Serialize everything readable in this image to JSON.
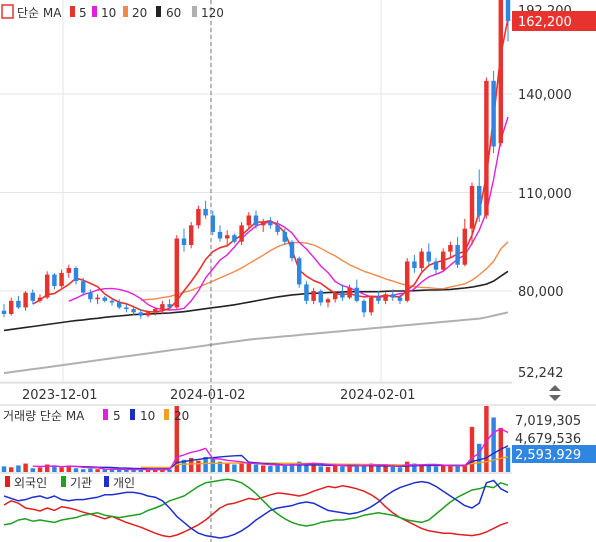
{
  "colors": {
    "up": "#e8322e",
    "down": "#2f86e0",
    "ma5": "#e8322e",
    "ma10": "#e020e0",
    "ma20": "#f08a4b",
    "ma60": "#222222",
    "ma120": "#b0b0b0",
    "vma5": "#e020e0",
    "vma10": "#1b2fbf",
    "vma20": "#f0a020",
    "foreign": "#e02020",
    "institution": "#20a020",
    "individual": "#1f2fd0",
    "price_badge": "#e8322e",
    "volume_badge": "#2f86e0",
    "grid": "#e6e6e6",
    "axis_text": "#333333"
  },
  "price_legend": {
    "title": "단순 MA",
    "items": [
      {
        "label": "5",
        "color": "#e8322e"
      },
      {
        "label": "10",
        "color": "#e020e0"
      },
      {
        "label": "20",
        "color": "#f08a4b"
      },
      {
        "label": "60",
        "color": "#222222"
      },
      {
        "label": "120",
        "color": "#b0b0b0"
      }
    ]
  },
  "volume_legend": {
    "title": "거래량 단순 MA",
    "items": [
      {
        "label": "5",
        "color": "#e020e0"
      },
      {
        "label": "10",
        "color": "#1b2fbf"
      },
      {
        "label": "20",
        "color": "#f0a020"
      }
    ]
  },
  "investor_legend": {
    "items": [
      {
        "label": "외국인",
        "color": "#e02020"
      },
      {
        "label": "기관",
        "color": "#20a020"
      },
      {
        "label": "개인",
        "color": "#1f2fd0"
      }
    ]
  },
  "price_axis": {
    "labels": [
      "140,000",
      "110,000",
      "80,000",
      "52,242"
    ],
    "top_partial": "192,200",
    "current_price": "162,200"
  },
  "volume_axis": {
    "labels": [
      "7,019,305",
      "4,679,536"
    ],
    "current_volume": "2,593,929"
  },
  "x_axis": {
    "labels": [
      "2023-12-01",
      "2024-01-02",
      "2024-02-01"
    ]
  },
  "resize_handle_icon": "up-down-arrows-icon",
  "chart_data": {
    "type": "candlestick",
    "price_ticks": [
      140000,
      110000,
      80000,
      52242
    ],
    "price_last": 162200,
    "volume_ticks": [
      7019305,
      4679536
    ],
    "volume_last": 2593929,
    "date_ticks": [
      "2023-12-01",
      "2024-01-02",
      "2024-02-01"
    ],
    "series_names": [
      "MA 5",
      "MA 10",
      "MA 20",
      "MA 60",
      "MA 120"
    ],
    "ohlc": [
      [
        74000,
        76000,
        72000,
        73000
      ],
      [
        73000,
        78000,
        72500,
        77000
      ],
      [
        77000,
        78500,
        74500,
        75000
      ],
      [
        75000,
        80000,
        74000,
        79500
      ],
      [
        79500,
        80500,
        76000,
        77000
      ],
      [
        77000,
        79000,
        76500,
        78000
      ],
      [
        78000,
        86000,
        77500,
        85000
      ],
      [
        85000,
        85500,
        80500,
        81500
      ],
      [
        81500,
        86500,
        81000,
        85500
      ],
      [
        85500,
        88000,
        84000,
        87000
      ],
      [
        87000,
        87500,
        82000,
        83000
      ],
      [
        83000,
        84000,
        78500,
        79500
      ],
      [
        79500,
        80500,
        76500,
        77500
      ],
      [
        77500,
        79000,
        76000,
        78000
      ],
      [
        78000,
        78500,
        76500,
        77000
      ],
      [
        77000,
        78000,
        75500,
        76500
      ],
      [
        76500,
        77500,
        74500,
        75000
      ],
      [
        75000,
        76000,
        73500,
        74500
      ],
      [
        74500,
        75500,
        72500,
        73500
      ],
      [
        73500,
        74500,
        71500,
        72500
      ],
      [
        72500,
        74000,
        72000,
        73500
      ],
      [
        73500,
        75000,
        72500,
        74500
      ],
      [
        74500,
        77000,
        73000,
        76000
      ],
      [
        76000,
        77500,
        74000,
        75000
      ],
      [
        75000,
        97000,
        74500,
        96000
      ],
      [
        96000,
        99000,
        92000,
        94000
      ],
      [
        94000,
        101000,
        93000,
        100000
      ],
      [
        100000,
        106000,
        99000,
        105000
      ],
      [
        105000,
        107500,
        102000,
        103000
      ],
      [
        103000,
        104500,
        97000,
        98000
      ],
      [
        98000,
        100000,
        95000,
        96000
      ],
      [
        96000,
        98500,
        94000,
        97000
      ],
      [
        97000,
        97500,
        94500,
        95000
      ],
      [
        95000,
        101000,
        94000,
        100000
      ],
      [
        100000,
        104000,
        99000,
        103000
      ],
      [
        103000,
        104500,
        99000,
        100000
      ],
      [
        100000,
        102000,
        98000,
        101000
      ],
      [
        101000,
        102500,
        99000,
        100000
      ],
      [
        100000,
        101500,
        97000,
        98000
      ],
      [
        98000,
        99000,
        94000,
        95000
      ],
      [
        95000,
        95500,
        89000,
        90000
      ],
      [
        90000,
        90500,
        81000,
        82000
      ],
      [
        82000,
        83000,
        76000,
        77000
      ],
      [
        77000,
        81000,
        76000,
        80000
      ],
      [
        80000,
        80500,
        75500,
        76500
      ],
      [
        76500,
        78000,
        75000,
        77500
      ],
      [
        77500,
        80000,
        76500,
        79500
      ],
      [
        79500,
        82000,
        77000,
        78000
      ],
      [
        78000,
        82000,
        77500,
        81000
      ],
      [
        81000,
        83500,
        76500,
        77000
      ],
      [
        77000,
        77500,
        72000,
        73500
      ],
      [
        73500,
        78500,
        72500,
        78000
      ],
      [
        78000,
        80000,
        76000,
        77000
      ],
      [
        77000,
        79500,
        76000,
        79000
      ],
      [
        79000,
        80500,
        77000,
        78000
      ],
      [
        78000,
        79000,
        76000,
        77000
      ],
      [
        77000,
        90000,
        76500,
        89000
      ],
      [
        89000,
        91000,
        85500,
        87000
      ],
      [
        87000,
        93000,
        86000,
        92000
      ],
      [
        92000,
        94500,
        88000,
        89000
      ],
      [
        89000,
        90000,
        85000,
        86500
      ],
      [
        86500,
        93000,
        86000,
        92000
      ],
      [
        92000,
        95000,
        90000,
        94000
      ],
      [
        94000,
        96500,
        87000,
        88000
      ],
      [
        88000,
        102000,
        87500,
        99000
      ],
      [
        99000,
        113000,
        94000,
        112000
      ],
      [
        112000,
        117000,
        101000,
        103000
      ],
      [
        103000,
        145000,
        102000,
        144000
      ],
      [
        144000,
        147000,
        122000,
        124000
      ],
      [
        125000,
        180000,
        124000,
        176000
      ],
      [
        176000,
        193000,
        156000,
        162200
      ]
    ],
    "ma5": [
      null,
      null,
      null,
      null,
      76000,
      77300,
      78900,
      79200,
      80600,
      82000,
      83900,
      83300,
      82300,
      81300,
      79100,
      77700,
      76600,
      76100,
      75200,
      74200,
      73700,
      73600,
      74000,
      74700,
      77000,
      80100,
      82900,
      86000,
      89600,
      92000,
      93200,
      93800,
      95600,
      97000,
      99000,
      101000,
      101000,
      101400,
      100000,
      97800,
      92500,
      86400,
      84500,
      83200,
      82300,
      80700,
      79300,
      78800,
      79200,
      78600,
      78200,
      78400,
      78300,
      78700,
      78400,
      78200,
      80200,
      82000,
      85600,
      87800,
      88700,
      89300,
      90100,
      91300,
      92100,
      97000,
      104000,
      115000,
      133000,
      152000,
      163000
    ],
    "ma10": [
      null,
      null,
      null,
      null,
      null,
      null,
      null,
      null,
      null,
      76900,
      77800,
      78900,
      79500,
      80300,
      80700,
      80800,
      80500,
      79900,
      79000,
      77700,
      75900,
      74800,
      74400,
      74200,
      74300,
      74700,
      77000,
      80000,
      84000,
      86700,
      89400,
      91000,
      93400,
      96000,
      98000,
      99800,
      100600,
      101000,
      100600,
      99400,
      97700,
      94800,
      92800,
      90300,
      87600,
      85600,
      82900,
      81600,
      81000,
      80000,
      79000,
      78200,
      78100,
      78400,
      78700,
      79200,
      79400,
      80700,
      82700,
      84300,
      85100,
      86000,
      87900,
      89700,
      91000,
      94500,
      98500,
      104000,
      114000,
      126000,
      133000
    ],
    "ma20": [
      null,
      null,
      null,
      null,
      null,
      null,
      null,
      null,
      null,
      null,
      null,
      null,
      null,
      null,
      null,
      null,
      null,
      null,
      null,
      77200,
      77400,
      77600,
      78000,
      78300,
      79000,
      79600,
      80200,
      81100,
      82100,
      83000,
      84000,
      84900,
      85900,
      87000,
      88300,
      89600,
      90900,
      92300,
      93500,
      94300,
      94700,
      94800,
      94600,
      94000,
      93000,
      91800,
      90700,
      89300,
      88000,
      87000,
      86000,
      85300,
      84500,
      83700,
      83000,
      82300,
      81700,
      81300,
      81100,
      81000,
      80800,
      80700,
      81200,
      81700,
      82200,
      83300,
      84900,
      86800,
      89000,
      92800,
      95000
    ],
    "ma60": [
      68000,
      68300,
      68600,
      68900,
      69200,
      69500,
      69800,
      70100,
      70400,
      70700,
      71000,
      71200,
      71500,
      71700,
      72000,
      72200,
      72400,
      72600,
      72800,
      72900,
      73000,
      73100,
      73200,
      73300,
      73500,
      73700,
      74000,
      74300,
      74600,
      74900,
      75200,
      75500,
      75800,
      76200,
      76600,
      77000,
      77400,
      77800,
      78200,
      78500,
      78800,
      79000,
      79200,
      79300,
      79400,
      79500,
      79600,
      79700,
      79800,
      79800,
      79800,
      79800,
      79800,
      79900,
      80000,
      80000,
      80000,
      80100,
      80200,
      80300,
      80300,
      80400,
      80500,
      80700,
      80900,
      81200,
      81600,
      82100,
      83000,
      84500,
      86000
    ],
    "ma120": [
      55000,
      55300,
      55600,
      55900,
      56200,
      56500,
      56800,
      57100,
      57400,
      57700,
      58000,
      58300,
      58600,
      58900,
      59200,
      59500,
      59800,
      60100,
      60400,
      60700,
      61000,
      61300,
      61600,
      61900,
      62200,
      62500,
      62800,
      63100,
      63400,
      63700,
      64000,
      64300,
      64600,
      64900,
      65200,
      65400,
      65600,
      65800,
      66000,
      66200,
      66400,
      66600,
      66800,
      67000,
      67200,
      67400,
      67600,
      67800,
      68000,
      68200,
      68400,
      68600,
      68800,
      69000,
      69200,
      69400,
      69600,
      69800,
      70000,
      70200,
      70400,
      70600,
      70800,
      71000,
      71200,
      71400,
      71600,
      72000,
      72500,
      73000,
      73500
    ],
    "volume": [
      600000,
      500000,
      700000,
      900000,
      400000,
      500000,
      800000,
      600000,
      500000,
      700000,
      400000,
      300000,
      350000,
      300000,
      250000,
      280000,
      300000,
      260000,
      240000,
      220000,
      200000,
      220000,
      260000,
      240000,
      7019305,
      1300000,
      1500000,
      1200000,
      1600000,
      1400000,
      1100000,
      900000,
      800000,
      1000000,
      900000,
      800000,
      700000,
      650000,
      750000,
      700000,
      900000,
      1100000,
      800000,
      1000000,
      600000,
      550000,
      700000,
      600000,
      650000,
      800000,
      700000,
      900000,
      650000,
      600000,
      550000,
      500000,
      1100000,
      900000,
      800000,
      700000,
      600000,
      650000,
      700000,
      600000,
      800000,
      4800000,
      3000000,
      7019305,
      5800000,
      4679536,
      2593929
    ],
    "volume_ma5": [
      null,
      null,
      null,
      null,
      620000,
      600000,
      620000,
      640000,
      560000,
      620000,
      600000,
      500000,
      450000,
      450000,
      320000,
      300000,
      290000,
      280000,
      270000,
      250000,
      250000,
      240000,
      240000,
      240000,
      1580000,
      1820000,
      2100000,
      2250000,
      2520000,
      1420000,
      1380000,
      1240000,
      1160000,
      1080000,
      940000,
      900000,
      840000,
      780000,
      760000,
      720000,
      740000,
      820000,
      850000,
      900000,
      880000,
      810000,
      730000,
      690000,
      620000,
      660000,
      690000,
      730000,
      730000,
      730000,
      650000,
      630000,
      750000,
      740000,
      770000,
      800000,
      800000,
      730000,
      670000,
      660000,
      670000,
      1500000,
      2000000,
      3300000,
      4200000,
      4600000,
      4200000
    ],
    "volume_ma10": [
      null,
      null,
      null,
      null,
      null,
      null,
      null,
      null,
      null,
      620000,
      600000,
      560000,
      540000,
      510000,
      500000,
      480000,
      440000,
      410000,
      380000,
      360000,
      340000,
      330000,
      320000,
      320000,
      1000000,
      1110000,
      1240000,
      1340000,
      1460000,
      1520000,
      1610000,
      1670000,
      1720000,
      1760000,
      1040000,
      980000,
      900000,
      850000,
      820000,
      750000,
      740000,
      760000,
      760000,
      760000,
      730000,
      710000,
      710000,
      700000,
      690000,
      690000,
      670000,
      670000,
      660000,
      640000,
      640000,
      600000,
      640000,
      670000,
      690000,
      700000,
      700000,
      700000,
      710000,
      710000,
      700000,
      1130000,
      1300000,
      1500000,
      2000000,
      2400000,
      2800000
    ],
    "volume_ma20": [
      null,
      null,
      null,
      null,
      null,
      null,
      null,
      null,
      null,
      null,
      null,
      null,
      null,
      null,
      null,
      null,
      null,
      null,
      null,
      500000,
      500000,
      490000,
      480000,
      480000,
      800000,
      830000,
      860000,
      880000,
      910000,
      920000,
      930000,
      940000,
      950000,
      960000,
      970000,
      960000,
      950000,
      950000,
      940000,
      930000,
      920000,
      910000,
      900000,
      890000,
      880000,
      840000,
      840000,
      830000,
      820000,
      820000,
      800000,
      790000,
      780000,
      780000,
      780000,
      760000,
      740000,
      730000,
      720000,
      720000,
      700000,
      700000,
      690000,
      690000,
      700000,
      900000,
      990000,
      1080000,
      1280000,
      1460000,
      1600000
    ],
    "foreign": [
      0.55,
      0.62,
      0.58,
      0.5,
      0.48,
      0.45,
      0.5,
      0.46,
      0.52,
      0.5,
      0.47,
      0.43,
      0.4,
      0.36,
      0.32,
      0.36,
      0.31,
      0.26,
      0.22,
      0.18,
      0.13,
      0.08,
      0.04,
      0.02,
      0.05,
      0.1,
      0.16,
      0.22,
      0.3,
      0.4,
      0.5,
      0.56,
      0.58,
      0.62,
      0.66,
      0.64,
      0.68,
      0.72,
      0.75,
      0.74,
      0.72,
      0.7,
      0.73,
      0.78,
      0.82,
      0.86,
      0.84,
      0.87,
      0.85,
      0.82,
      0.78,
      0.72,
      0.64,
      0.52,
      0.42,
      0.34,
      0.28,
      0.22,
      0.16,
      0.12,
      0.1,
      0.08,
      0.08,
      0.06,
      0.05,
      0.04,
      0.06,
      0.1,
      0.16,
      0.22,
      0.26
    ],
    "institution": [
      0.22,
      0.24,
      0.3,
      0.32,
      0.28,
      0.3,
      0.28,
      0.26,
      0.3,
      0.32,
      0.34,
      0.38,
      0.4,
      0.42,
      0.38,
      0.36,
      0.34,
      0.36,
      0.38,
      0.4,
      0.46,
      0.5,
      0.55,
      0.62,
      0.66,
      0.7,
      0.78,
      0.86,
      0.92,
      0.94,
      0.96,
      0.98,
      0.96,
      0.92,
      0.84,
      0.74,
      0.62,
      0.5,
      0.4,
      0.32,
      0.26,
      0.22,
      0.2,
      0.22,
      0.26,
      0.28,
      0.3,
      0.3,
      0.32,
      0.34,
      0.38,
      0.4,
      0.42,
      0.4,
      0.38,
      0.34,
      0.3,
      0.28,
      0.26,
      0.3,
      0.4,
      0.5,
      0.6,
      0.68,
      0.74,
      0.8,
      0.82,
      0.86,
      0.84,
      0.92,
      0.88
    ],
    "individual": [
      0.7,
      0.66,
      0.62,
      0.64,
      0.68,
      0.7,
      0.66,
      0.7,
      0.64,
      0.62,
      0.64,
      0.64,
      0.66,
      0.68,
      0.72,
      0.72,
      0.74,
      0.76,
      0.76,
      0.74,
      0.7,
      0.68,
      0.62,
      0.5,
      0.36,
      0.26,
      0.16,
      0.08,
      0.04,
      0.02,
      0.0,
      0.02,
      0.06,
      0.12,
      0.2,
      0.3,
      0.38,
      0.46,
      0.5,
      0.52,
      0.54,
      0.58,
      0.6,
      0.58,
      0.52,
      0.46,
      0.44,
      0.42,
      0.4,
      0.42,
      0.46,
      0.52,
      0.6,
      0.7,
      0.78,
      0.84,
      0.88,
      0.92,
      0.94,
      0.92,
      0.86,
      0.78,
      0.7,
      0.62,
      0.54,
      0.5,
      0.58,
      0.92,
      0.96,
      0.82,
      0.76
    ]
  }
}
